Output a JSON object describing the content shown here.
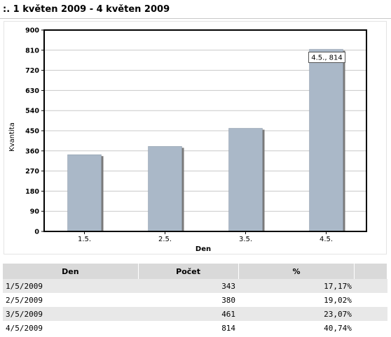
{
  "report": {
    "title": ":. 1 květen 2009 - 4 květen 2009"
  },
  "chart_data": {
    "type": "bar",
    "categories": [
      "1.5.",
      "2.5.",
      "3.5.",
      "4.5."
    ],
    "values": [
      343,
      380,
      461,
      814
    ],
    "xlabel": "Den",
    "ylabel": "Kvantita",
    "ylim": [
      0,
      900
    ],
    "yticks": [
      0,
      90,
      180,
      270,
      360,
      450,
      540,
      630,
      720,
      810,
      900
    ],
    "grid": true,
    "annotations": [
      {
        "category": "4.5.",
        "text": "4.5., 814"
      }
    ],
    "colors": {
      "bar": "#aab8c8",
      "bar_shadow": "#7a7a7a",
      "plot_border": "#000000",
      "grid": "#c8c8c8"
    }
  },
  "table": {
    "headers": [
      "Den",
      "Počet",
      "%"
    ],
    "rows": [
      {
        "date": "1/5/2009",
        "count": "343",
        "pct": "17,17%"
      },
      {
        "date": "2/5/2009",
        "count": "380",
        "pct": "19,02%"
      },
      {
        "date": "3/5/2009",
        "count": "461",
        "pct": "23,07%"
      },
      {
        "date": "4/5/2009",
        "count": "814",
        "pct": "40,74%"
      }
    ]
  }
}
